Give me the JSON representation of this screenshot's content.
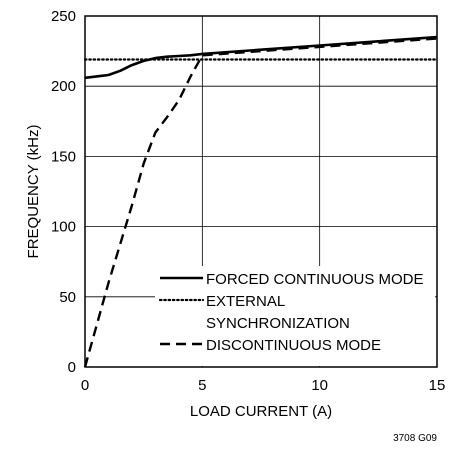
{
  "chart_data": {
    "type": "line",
    "title": "",
    "xlabel": "LOAD CURRENT (A)",
    "ylabel": "FREQUENCY (kHz)",
    "xlim": [
      0,
      15
    ],
    "ylim": [
      0,
      250
    ],
    "xticks": [
      0,
      5,
      10,
      15
    ],
    "yticks": [
      0,
      50,
      100,
      150,
      200,
      250
    ],
    "grid": true,
    "legend_position": "bottom-right",
    "series": [
      {
        "name": "FORCED CONTINUOUS MODE",
        "style": "solid",
        "x": [
          0,
          0.5,
          1,
          1.5,
          2,
          2.5,
          3,
          3.5,
          4,
          4.5,
          5,
          7.5,
          10,
          12.5,
          15
        ],
        "y": [
          206,
          207,
          208,
          211,
          215,
          218,
          220,
          221,
          221.5,
          222,
          223,
          226,
          229,
          232,
          235
        ]
      },
      {
        "name": "EXTERNAL SYNCHRONIZATION",
        "legend_lines": [
          "EXTERNAL",
          "SYNCHRONIZATION"
        ],
        "style": "dotted",
        "x": [
          0,
          15
        ],
        "y": [
          219,
          219
        ]
      },
      {
        "name": "DISCONTINUOUS MODE",
        "style": "dashed",
        "x": [
          0,
          1,
          2,
          2.5,
          3,
          3.5,
          4,
          4.5,
          5,
          7.5,
          10,
          12.5,
          15
        ],
        "y": [
          0,
          60,
          115,
          145,
          167,
          178,
          190,
          207,
          222,
          225,
          228,
          231,
          234
        ]
      }
    ]
  },
  "figure_id": "3708 G09"
}
